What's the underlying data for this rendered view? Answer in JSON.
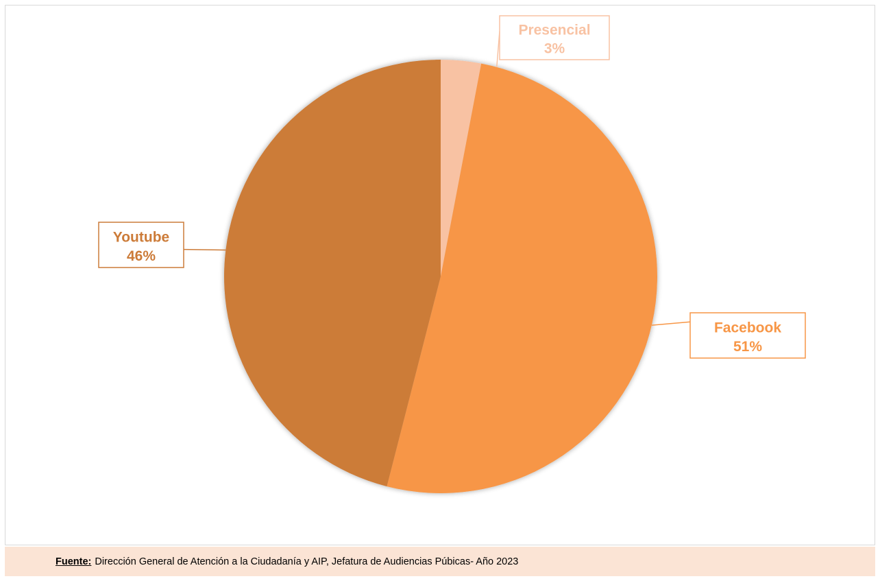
{
  "chart_data": {
    "type": "pie",
    "categories": [
      "Presencial",
      "Facebook",
      "Youtube"
    ],
    "values": [
      3,
      51,
      46
    ],
    "unit": "%",
    "colors": [
      "#f8c2a3",
      "#f79646",
      "#cc7b38"
    ],
    "start": "top",
    "direction": "clockwise",
    "data_labels": [
      {
        "name": "Presencial",
        "pct": "3%"
      },
      {
        "name": "Facebook",
        "pct": "51%"
      },
      {
        "name": "Youtube",
        "pct": "46%"
      }
    ],
    "legend": "none"
  },
  "source": {
    "label": "Fuente:",
    "text": "Dirección General de Atención a la Ciudadanía y AIP, Jefatura de Audiencias Púbicas- Año 2023"
  }
}
